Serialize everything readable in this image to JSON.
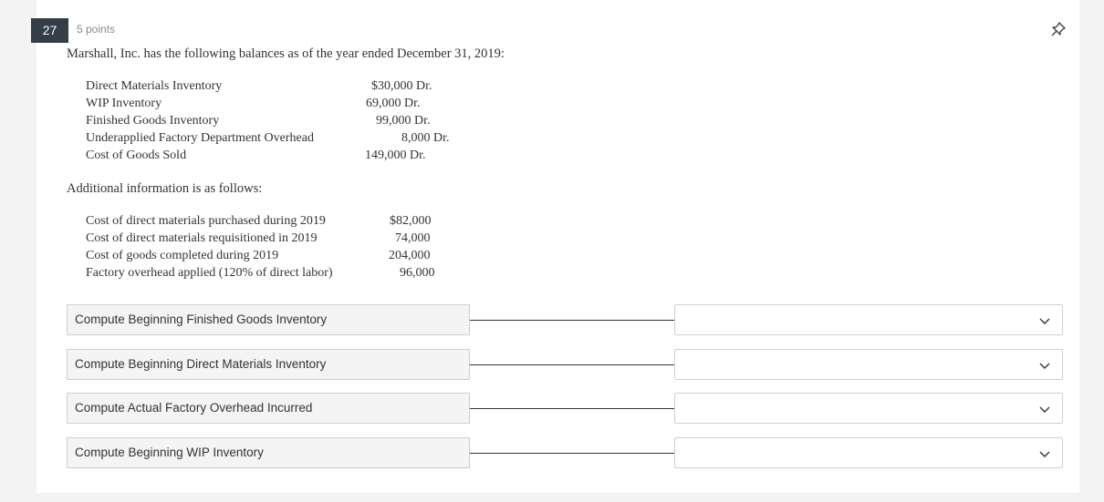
{
  "question": {
    "number": "27",
    "points": "5 points",
    "intro": "Marshall, Inc.  has the following balances as of the year ended December 31, 2019:"
  },
  "balances": [
    {
      "label": "Direct Materials Inventory",
      "value": "$30,000  Dr."
    },
    {
      "label": "WIP Inventory",
      "value": "69,000  Dr."
    },
    {
      "label": "Finished Goods Inventory",
      "value": "99,000  Dr."
    },
    {
      "label": "Underapplied Factory Department Overhead",
      "value": "8,000  Dr."
    },
    {
      "label": "Cost of Goods Sold",
      "value": "149,000  Dr."
    }
  ],
  "additional_heading": "Additional information is as follows:",
  "additional": [
    {
      "label": "Cost of direct materials purchased during 2019",
      "value": "$82,000"
    },
    {
      "label": "Cost of direct materials requisitioned in 2019",
      "value": "74,000"
    },
    {
      "label": "Cost of goods completed during 2019",
      "value": "204,000"
    },
    {
      "label": "Factory overhead applied (120% of direct labor)",
      "value": "96,000"
    }
  ],
  "matching": [
    {
      "prompt": "Compute Beginning Finished Goods Inventory",
      "selected": ""
    },
    {
      "prompt": "Compute Beginning Direct Materials Inventory",
      "selected": ""
    },
    {
      "prompt": "Compute Actual Factory Overhead Incurred",
      "selected": ""
    },
    {
      "prompt": "Compute Beginning WIP Inventory",
      "selected": ""
    }
  ],
  "icons": {
    "pin": "pin-icon",
    "dropdown": "chevron-down-icon"
  }
}
